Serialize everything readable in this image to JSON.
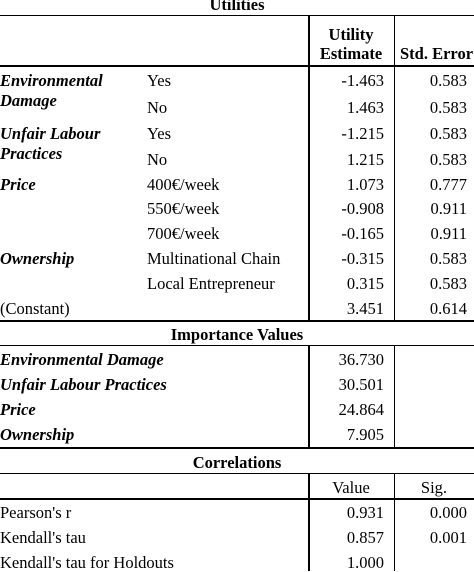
{
  "utilities": {
    "title": "Utilities",
    "col_estimate_l1": "Utility",
    "col_estimate_l2": "Estimate",
    "col_error": "Std. Error",
    "rows": [
      {
        "factor_l1": "Environmental",
        "factor_l2": "Damage",
        "level": "Yes",
        "estimate": "-1.463",
        "error": "0.583"
      },
      {
        "factor_l1": "",
        "factor_l2": "",
        "level": "No",
        "estimate": "1.463",
        "error": "0.583"
      },
      {
        "factor_l1": "Unfair Labour",
        "factor_l2": "Practices",
        "level": "Yes",
        "estimate": "-1.215",
        "error": "0.583"
      },
      {
        "factor_l1": "",
        "factor_l2": "",
        "level": "No",
        "estimate": "1.215",
        "error": "0.583"
      },
      {
        "factor_l1": "Price",
        "factor_l2": "",
        "level": "400€/week",
        "estimate": "1.073",
        "error": "0.777"
      },
      {
        "factor_l1": "",
        "factor_l2": "",
        "level": "550€/week",
        "estimate": "-0.908",
        "error": "0.911"
      },
      {
        "factor_l1": "",
        "factor_l2": "",
        "level": "700€/week",
        "estimate": "-0.165",
        "error": "0.911"
      },
      {
        "factor_l1": "Ownership",
        "factor_l2": "",
        "level": "Multinational Chain",
        "estimate": "-0.315",
        "error": "0.583"
      },
      {
        "factor_l1": "",
        "factor_l2": "",
        "level": "Local Entrepreneur",
        "estimate": "0.315",
        "error": "0.583"
      }
    ],
    "constant_label": "(Constant)",
    "constant_estimate": "3.451",
    "constant_error": "0.614"
  },
  "importance": {
    "title": "Importance Values",
    "rows": [
      {
        "label": "Environmental Damage",
        "value": "36.730"
      },
      {
        "label": "Unfair Labour Practices",
        "value": "30.501"
      },
      {
        "label": "Price",
        "value": "24.864"
      },
      {
        "label": "Ownership",
        "value": "7.905"
      }
    ]
  },
  "correlations": {
    "title": "Correlations",
    "col_value": "Value",
    "col_sig": "Sig.",
    "rows": [
      {
        "label": "Pearson's r",
        "value": "0.931",
        "sig": "0.000"
      },
      {
        "label": "Kendall's tau",
        "value": "0.857",
        "sig": "0.001"
      },
      {
        "label": "Kendall's tau for Holdouts",
        "value": "1.000",
        "sig": ""
      }
    ]
  }
}
